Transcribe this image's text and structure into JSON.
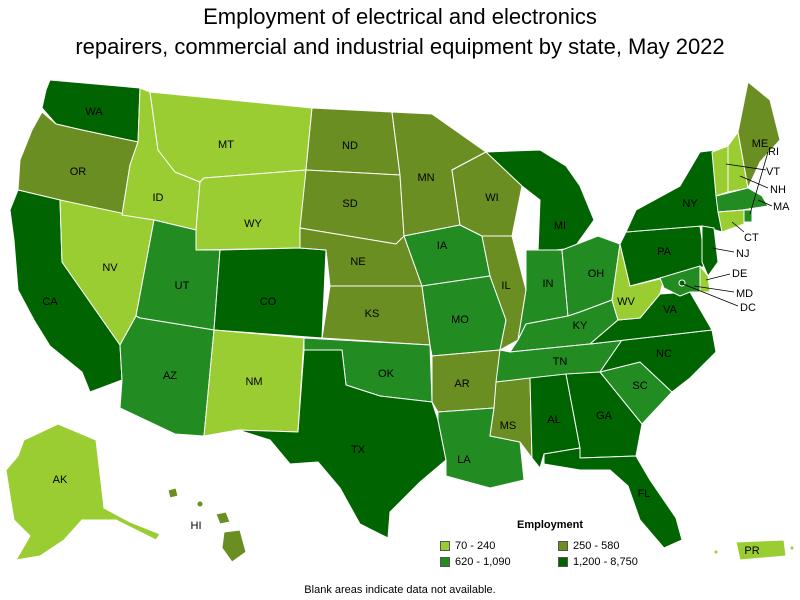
{
  "title_line1": "Employment of electrical and electronics",
  "title_line2": "repairers, commercial and industrial equipment by state, May 2022",
  "legend": {
    "title": "Employment",
    "items": [
      {
        "label": "70 - 240",
        "color": "#9acd32"
      },
      {
        "label": "250 - 580",
        "color": "#6b8e23"
      },
      {
        "label": "620 - 1,090",
        "color": "#228b22"
      },
      {
        "label": "1,200 - 8,750",
        "color": "#006400"
      }
    ]
  },
  "footnote": "Blank areas indicate data not available.",
  "states": [
    {
      "abbr": "WA",
      "cls": 3
    },
    {
      "abbr": "OR",
      "cls": 1
    },
    {
      "abbr": "CA",
      "cls": 3
    },
    {
      "abbr": "NV",
      "cls": 0
    },
    {
      "abbr": "ID",
      "cls": 0
    },
    {
      "abbr": "MT",
      "cls": 0
    },
    {
      "abbr": "WY",
      "cls": 0
    },
    {
      "abbr": "UT",
      "cls": 2
    },
    {
      "abbr": "AZ",
      "cls": 2
    },
    {
      "abbr": "CO",
      "cls": 3
    },
    {
      "abbr": "NM",
      "cls": 0
    },
    {
      "abbr": "ND",
      "cls": 1
    },
    {
      "abbr": "SD",
      "cls": 1
    },
    {
      "abbr": "NE",
      "cls": 1
    },
    {
      "abbr": "KS",
      "cls": 1
    },
    {
      "abbr": "OK",
      "cls": 2
    },
    {
      "abbr": "TX",
      "cls": 3
    },
    {
      "abbr": "MN",
      "cls": 1
    },
    {
      "abbr": "IA",
      "cls": 2
    },
    {
      "abbr": "MO",
      "cls": 2
    },
    {
      "abbr": "AR",
      "cls": 1
    },
    {
      "abbr": "LA",
      "cls": 2
    },
    {
      "abbr": "WI",
      "cls": 1
    },
    {
      "abbr": "IL",
      "cls": 1
    },
    {
      "abbr": "MI",
      "cls": 3
    },
    {
      "abbr": "IN",
      "cls": 2
    },
    {
      "abbr": "OH",
      "cls": 2
    },
    {
      "abbr": "KY",
      "cls": 2
    },
    {
      "abbr": "TN",
      "cls": 2
    },
    {
      "abbr": "MS",
      "cls": 1
    },
    {
      "abbr": "AL",
      "cls": 3
    },
    {
      "abbr": "GA",
      "cls": 3
    },
    {
      "abbr": "FL",
      "cls": 3
    },
    {
      "abbr": "SC",
      "cls": 2
    },
    {
      "abbr": "NC",
      "cls": 3
    },
    {
      "abbr": "VA",
      "cls": 3
    },
    {
      "abbr": "WV",
      "cls": 0
    },
    {
      "abbr": "PA",
      "cls": 3
    },
    {
      "abbr": "NY",
      "cls": 3
    },
    {
      "abbr": "VT",
      "cls": 0
    },
    {
      "abbr": "NH",
      "cls": 0
    },
    {
      "abbr": "ME",
      "cls": 1
    },
    {
      "abbr": "MA",
      "cls": 2
    },
    {
      "abbr": "RI",
      "cls": 2
    },
    {
      "abbr": "CT",
      "cls": 0
    },
    {
      "abbr": "NJ",
      "cls": 3
    },
    {
      "abbr": "DE",
      "cls": 0
    },
    {
      "abbr": "MD",
      "cls": 2
    },
    {
      "abbr": "DC",
      "cls": 3
    },
    {
      "abbr": "AK",
      "cls": 0
    },
    {
      "abbr": "HI",
      "cls": 1
    },
    {
      "abbr": "PR",
      "cls": 0
    }
  ]
}
